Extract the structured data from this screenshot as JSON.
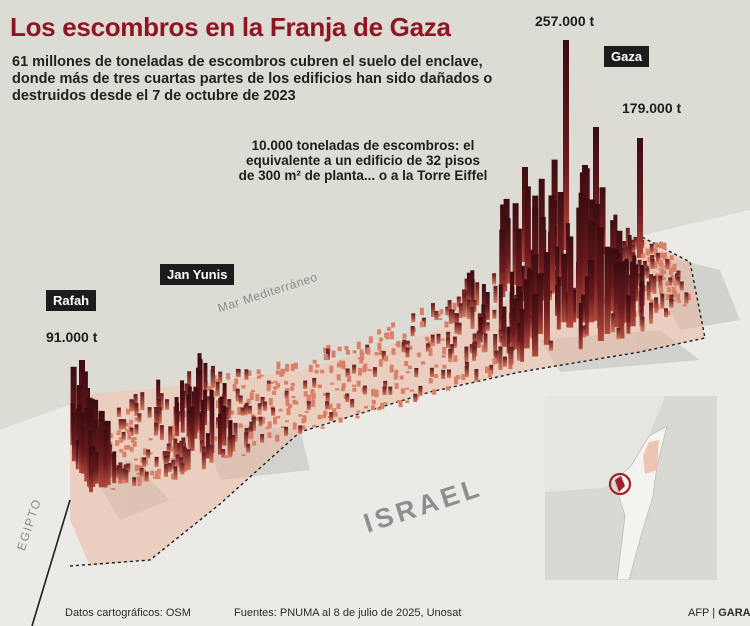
{
  "title": "Los escombros en la Franja de Gaza",
  "subtitle": "61 millones de toneladas de escombros cubren el suelo del enclave, donde más de tres cuartas partes de los edificios han sido dañados o destruidos desde el 7 de octubre de 2023",
  "note": "10.000 toneladas de escombros: el equivalente a un edificio de 32 pisos de 300 m² de planta... o a la Torre Eiffel",
  "places": {
    "rafah": "Rafah",
    "jan_yunis": "Jan Yunis",
    "gaza": "Gaza"
  },
  "values": {
    "rafah_peak": "91.000 t",
    "gaza_peak_1": "257.000 t",
    "gaza_peak_2": "179.000 t"
  },
  "geo_labels": {
    "sea": "Mar Mediterráneo",
    "israel": "ISRAEL",
    "egypt": "EGIPTO"
  },
  "footer": {
    "map_data": "Datos cartográficos: OSM",
    "sources": "Fuentes: PNUMA al 8 de julio de 2025, Unosat",
    "credit_afp": "AFP",
    "credit_sep": " | ",
    "credit_gara": "GARA"
  },
  "colors": {
    "title": "#8e1622",
    "sea": "#dcdcd4",
    "land": "#ebeae6",
    "bar_dark": "#2a0a0e",
    "bar_mid": "#8e2a2a",
    "bar_light": "#e08a70",
    "inset_gaza": "#a0202c"
  }
}
